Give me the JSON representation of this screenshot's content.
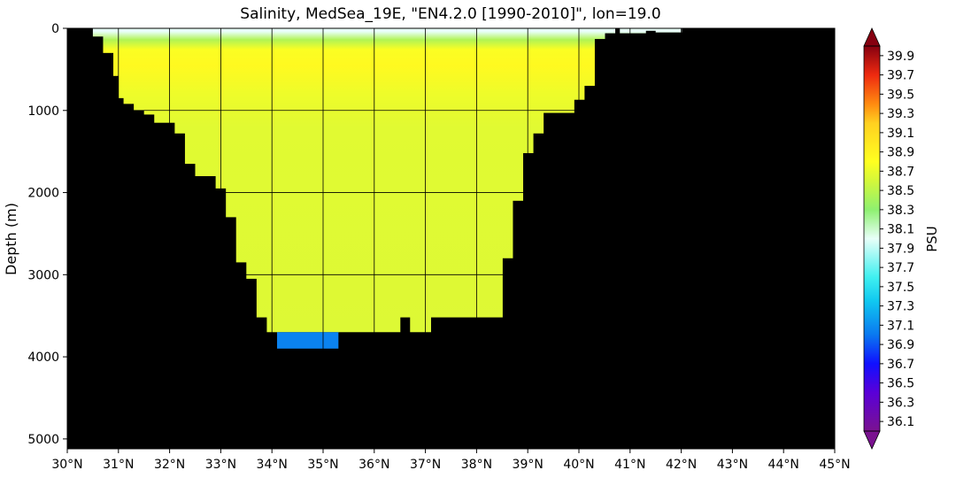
{
  "chart_data": {
    "type": "heatmap",
    "title": "Salinity, MedSea_19E, \"EN4.2.0 [1990-2010]\", lon=19.0",
    "xlabel": "",
    "ylabel": "Depth (m)",
    "x_unit": "°N",
    "xlim": [
      30,
      45
    ],
    "ylim": [
      0,
      5120
    ],
    "y_inverted": true,
    "x_ticks": [
      30,
      31,
      32,
      33,
      34,
      35,
      36,
      37,
      38,
      39,
      40,
      41,
      42,
      43,
      44,
      45
    ],
    "x_tick_labels": [
      "30°N",
      "31°N",
      "32°N",
      "33°N",
      "34°N",
      "35°N",
      "36°N",
      "37°N",
      "38°N",
      "39°N",
      "40°N",
      "41°N",
      "42°N",
      "43°N",
      "44°N",
      "45°N"
    ],
    "y_ticks": [
      0,
      1000,
      2000,
      3000,
      4000,
      5000
    ],
    "y_tick_labels": [
      "0",
      "1000",
      "2000",
      "3000",
      "4000",
      "5000"
    ],
    "grid": true,
    "land_color": "#000000",
    "colorbar": {
      "label": "PSU",
      "min": 36.0,
      "max": 40.0,
      "extend": "both",
      "ticks": [
        36.1,
        36.3,
        36.5,
        36.7,
        36.9,
        37.1,
        37.3,
        37.5,
        37.7,
        37.9,
        38.1,
        38.3,
        38.5,
        38.7,
        38.9,
        39.1,
        39.3,
        39.5,
        39.7,
        39.9
      ],
      "tick_labels": [
        "36.1",
        "36.3",
        "36.5",
        "36.7",
        "36.9",
        "37.1",
        "37.3",
        "37.5",
        "37.7",
        "37.9",
        "38.1",
        "38.3",
        "38.5",
        "38.7",
        "38.9",
        "39.1",
        "39.3",
        "39.5",
        "39.7",
        "39.9"
      ],
      "colors": [
        {
          "v": 36.0,
          "c": "#7a1290"
        },
        {
          "v": 36.4,
          "c": "#5a00d8"
        },
        {
          "v": 36.7,
          "c": "#1010ff"
        },
        {
          "v": 37.0,
          "c": "#0a78f0"
        },
        {
          "v": 37.35,
          "c": "#10c8f0"
        },
        {
          "v": 37.6,
          "c": "#40f0f0"
        },
        {
          "v": 38.0,
          "c": "#e8fff8"
        },
        {
          "v": 38.3,
          "c": "#8ef070"
        },
        {
          "v": 38.6,
          "c": "#d4f83a"
        },
        {
          "v": 38.8,
          "c": "#ffff20"
        },
        {
          "v": 39.2,
          "c": "#ffd020"
        },
        {
          "v": 39.4,
          "c": "#ff8a10"
        },
        {
          "v": 39.7,
          "c": "#ee2a10"
        },
        {
          "v": 40.0,
          "c": "#860010"
        }
      ]
    },
    "ocean_columns": [
      {
        "lat": [
          30.0,
          30.5
        ],
        "bottom": 0
      },
      {
        "lat": [
          30.5,
          30.7
        ],
        "bottom": 100
      },
      {
        "lat": [
          30.7,
          30.9
        ],
        "bottom": 300
      },
      {
        "lat": [
          30.9,
          31.0
        ],
        "bottom": 580
      },
      {
        "lat": [
          31.0,
          31.1
        ],
        "bottom": 850
      },
      {
        "lat": [
          31.1,
          31.3
        ],
        "bottom": 920
      },
      {
        "lat": [
          31.3,
          31.5
        ],
        "bottom": 1000
      },
      {
        "lat": [
          31.5,
          31.7
        ],
        "bottom": 1050
      },
      {
        "lat": [
          31.7,
          32.1
        ],
        "bottom": 1150
      },
      {
        "lat": [
          32.1,
          32.3
        ],
        "bottom": 1280
      },
      {
        "lat": [
          32.3,
          32.5
        ],
        "bottom": 1650
      },
      {
        "lat": [
          32.5,
          32.9
        ],
        "bottom": 1800
      },
      {
        "lat": [
          32.9,
          33.1
        ],
        "bottom": 1950
      },
      {
        "lat": [
          33.1,
          33.3
        ],
        "bottom": 2300
      },
      {
        "lat": [
          33.3,
          33.5
        ],
        "bottom": 2850
      },
      {
        "lat": [
          33.5,
          33.7
        ],
        "bottom": 3050
      },
      {
        "lat": [
          33.7,
          33.9
        ],
        "bottom": 3520
      },
      {
        "lat": [
          33.9,
          34.1
        ],
        "bottom": 3700
      },
      {
        "lat": [
          34.1,
          35.3
        ],
        "bottom": 3700
      },
      {
        "lat": [
          35.3,
          36.5
        ],
        "bottom": 3700
      },
      {
        "lat": [
          36.5,
          36.7
        ],
        "bottom": 3520
      },
      {
        "lat": [
          36.7,
          37.1
        ],
        "bottom": 3700
      },
      {
        "lat": [
          37.1,
          38.5
        ],
        "bottom": 3520
      },
      {
        "lat": [
          38.5,
          38.7
        ],
        "bottom": 2800
      },
      {
        "lat": [
          38.7,
          38.9
        ],
        "bottom": 2100
      },
      {
        "lat": [
          38.9,
          39.1
        ],
        "bottom": 1520
      },
      {
        "lat": [
          39.1,
          39.3
        ],
        "bottom": 1280
      },
      {
        "lat": [
          39.3,
          39.9
        ],
        "bottom": 1030
      },
      {
        "lat": [
          39.9,
          40.1
        ],
        "bottom": 870
      },
      {
        "lat": [
          40.1,
          40.3
        ],
        "bottom": 700
      },
      {
        "lat": [
          40.3,
          40.5
        ],
        "bottom": 130
      },
      {
        "lat": [
          40.5,
          40.7
        ],
        "bottom": 60
      },
      {
        "lat": [
          40.8,
          41.3
        ],
        "bottom": 60
      },
      {
        "lat": [
          41.3,
          41.5
        ],
        "bottom": 30
      },
      {
        "lat": [
          41.5,
          42.0
        ],
        "bottom": 50
      }
    ],
    "salinity_profile": [
      {
        "depth": 0,
        "value": 38.0
      },
      {
        "depth": 40,
        "value": 38.0
      },
      {
        "depth": 140,
        "value": 38.45
      },
      {
        "depth": 260,
        "value": 38.78
      },
      {
        "depth": 450,
        "value": 38.85
      },
      {
        "depth": 800,
        "value": 38.72
      },
      {
        "depth": 1200,
        "value": 38.66
      },
      {
        "depth": 3700,
        "value": 38.64
      }
    ],
    "anomalies": [
      {
        "lat": [
          34.1,
          35.3
        ],
        "depth": [
          3700,
          3900
        ],
        "value": 37.05
      }
    ]
  }
}
